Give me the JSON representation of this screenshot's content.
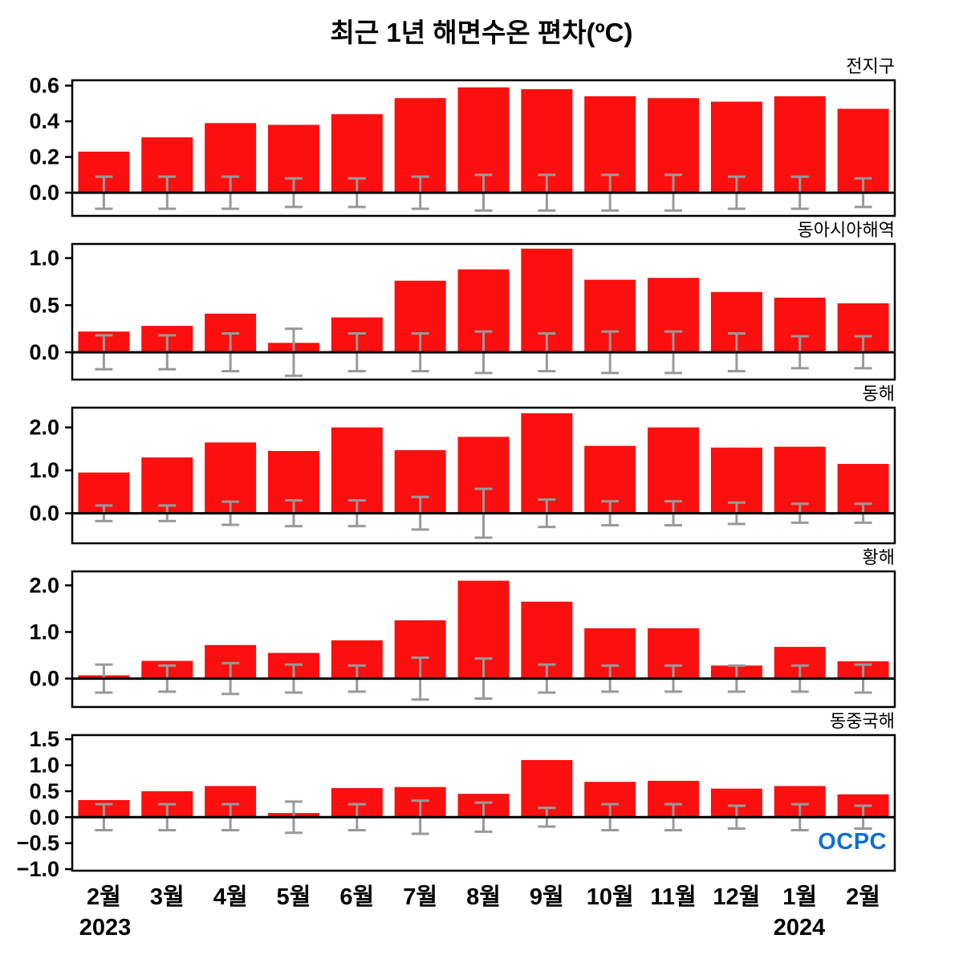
{
  "title": "최근 1년 해면수온 편차(ºC)",
  "footer": {
    "year_left": "2023",
    "year_right": "2024",
    "logo": "OCPC"
  },
  "colors": {
    "bar": "#fb0f0f",
    "error_bar": "#999999",
    "zero_line": "#000000",
    "frame": "#000000",
    "logo_blue": "#0f6fd0"
  },
  "chart_data": [
    {
      "type": "bar",
      "title": "전지구",
      "categories": [
        "2월",
        "3월",
        "4월",
        "5월",
        "6월",
        "7월",
        "8월",
        "9월",
        "10월",
        "11월",
        "12월",
        "1월",
        "2월"
      ],
      "values": [
        0.23,
        0.31,
        0.39,
        0.38,
        0.44,
        0.53,
        0.59,
        0.58,
        0.54,
        0.53,
        0.51,
        0.54,
        0.47
      ],
      "errors": [
        0.09,
        0.09,
        0.09,
        0.08,
        0.08,
        0.09,
        0.1,
        0.1,
        0.1,
        0.1,
        0.09,
        0.09,
        0.08
      ],
      "yticks": [
        0.0,
        0.2,
        0.4,
        0.6
      ],
      "ylim": [
        -0.13,
        0.63
      ]
    },
    {
      "type": "bar",
      "title": "동아시아해역",
      "categories": [
        "2월",
        "3월",
        "4월",
        "5월",
        "6월",
        "7월",
        "8월",
        "9월",
        "10월",
        "11월",
        "12월",
        "1월",
        "2월"
      ],
      "values": [
        0.22,
        0.28,
        0.41,
        0.1,
        0.37,
        0.76,
        0.88,
        1.1,
        0.77,
        0.79,
        0.64,
        0.58,
        0.52
      ],
      "errors": [
        0.18,
        0.18,
        0.2,
        0.25,
        0.2,
        0.2,
        0.22,
        0.2,
        0.22,
        0.22,
        0.2,
        0.17,
        0.17
      ],
      "yticks": [
        0.0,
        0.5,
        1.0
      ],
      "ylim": [
        -0.29,
        1.15
      ]
    },
    {
      "type": "bar",
      "title": "동해",
      "categories": [
        "2월",
        "3월",
        "4월",
        "5월",
        "6월",
        "7월",
        "8월",
        "9월",
        "10월",
        "11월",
        "12월",
        "1월",
        "2월"
      ],
      "values": [
        0.95,
        1.3,
        1.65,
        1.45,
        2.0,
        1.47,
        1.78,
        2.33,
        1.57,
        2.0,
        1.53,
        1.55,
        1.15
      ],
      "errors": [
        0.18,
        0.18,
        0.27,
        0.3,
        0.3,
        0.38,
        0.57,
        0.32,
        0.28,
        0.28,
        0.25,
        0.22,
        0.22
      ],
      "yticks": [
        0.0,
        1.0,
        2.0
      ],
      "ylim": [
        -0.7,
        2.46
      ]
    },
    {
      "type": "bar",
      "title": "황해",
      "categories": [
        "2월",
        "3월",
        "4월",
        "5월",
        "6월",
        "7월",
        "8월",
        "9월",
        "10월",
        "11월",
        "12월",
        "1월",
        "2월"
      ],
      "values": [
        0.07,
        0.38,
        0.72,
        0.55,
        0.82,
        1.25,
        2.1,
        1.65,
        1.08,
        1.08,
        0.28,
        0.68,
        0.37
      ],
      "errors": [
        0.3,
        0.28,
        0.33,
        0.3,
        0.28,
        0.45,
        0.43,
        0.3,
        0.28,
        0.28,
        0.28,
        0.28,
        0.3
      ],
      "yticks": [
        0.0,
        1.0,
        2.0
      ],
      "ylim": [
        -0.61,
        2.3
      ]
    },
    {
      "type": "bar",
      "title": "동중국해",
      "categories": [
        "2월",
        "3월",
        "4월",
        "5월",
        "6월",
        "7월",
        "8월",
        "9월",
        "10월",
        "11월",
        "12월",
        "1월",
        "2월"
      ],
      "values": [
        0.33,
        0.5,
        0.6,
        0.08,
        0.56,
        0.58,
        0.45,
        1.1,
        0.68,
        0.7,
        0.55,
        0.6,
        0.44
      ],
      "errors": [
        0.25,
        0.25,
        0.25,
        0.3,
        0.25,
        0.32,
        0.28,
        0.18,
        0.25,
        0.25,
        0.22,
        0.25,
        0.22
      ],
      "yticks": [
        -1.0,
        -0.5,
        0.0,
        0.5,
        1.0,
        1.5
      ],
      "ylim": [
        -1.03,
        1.58
      ]
    }
  ]
}
